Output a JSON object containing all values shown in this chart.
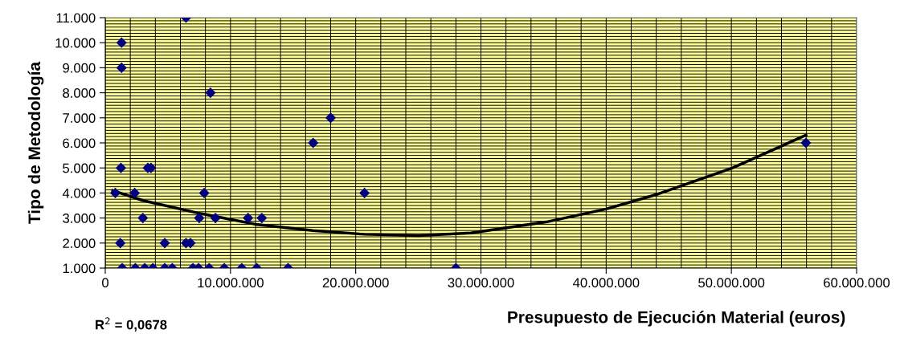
{
  "chart_data": {
    "type": "scatter",
    "xlabel": "Presupuesto de Ejecución Material (euros)",
    "ylabel": "Tipo de Metodología",
    "annotations": [
      "R$^{2}$ = 0,0678"
    ],
    "xlim": [
      0,
      60000000
    ],
    "xticks": [
      0,
      {
        "value": 10000000,
        "label": "10.000.000"
      },
      {
        "value": 20000000,
        "label": "20.000.000"
      },
      {
        "value": 30000000,
        "label": "30.000.000"
      },
      {
        "value": 40000000,
        "label": "40.000.000"
      },
      {
        "value": 50000000,
        "label": "50.000.000"
      },
      {
        "value": 60000000,
        "label": "60.000.000"
      }
    ],
    "ylim": [
      1000,
      11000
    ],
    "yticks": [
      {
        "value": 1000,
        "label": "1.000"
      },
      {
        "value": 2000,
        "label": "2.000"
      },
      {
        "value": 3000,
        "label": "3.000"
      },
      {
        "value": 4000,
        "label": "4.000"
      },
      {
        "value": 5000,
        "label": "5.000"
      },
      {
        "value": 6000,
        "label": "6.000"
      },
      {
        "value": 7000,
        "label": "7.000"
      },
      {
        "value": 8000,
        "label": "8.000"
      },
      {
        "value": 9000,
        "label": "9.000"
      },
      {
        "value": 10000,
        "label": "10.000"
      },
      {
        "value": 11000,
        "label": "11.000"
      }
    ],
    "grid": true,
    "legend": false,
    "series": [
      {
        "color": "#000080",
        "marker": "diamond",
        "x": [
          800000,
          2350000,
          7900000,
          20700000,
          1300000,
          1300000,
          1250000,
          3400000,
          3650000,
          6450000,
          8400000,
          16600000,
          18000000,
          55950000,
          3000000,
          7500000,
          8800000,
          11400000,
          12500000,
          1200000,
          4750000,
          6450000,
          6800000,
          1350000,
          2400000,
          3150000,
          3800000,
          4750000,
          5350000,
          7000000,
          7450000,
          8300000,
          9500000,
          10900000,
          12100000,
          14600000,
          28000000
        ],
        "values": [
          4000,
          4000,
          4000,
          4000,
          10000,
          9000,
          5000,
          5000,
          5000,
          11000,
          8000,
          6000,
          7000,
          6000,
          3000,
          3000,
          3000,
          3000,
          3000,
          2000,
          2000,
          2000,
          2000,
          1000,
          1000,
          1000,
          1000,
          1000,
          1000,
          1000,
          1000,
          1000,
          1000,
          1000,
          1000,
          1000,
          1000
        ]
      },
      {
        "type": "line",
        "color": "#000000",
        "marker": "none",
        "line_style": "solid",
        "x": [
          600000,
          3000000,
          7400000,
          12000000,
          16600000,
          20700000,
          25000000,
          29200000,
          35200000,
          40000000,
          44100000,
          50100000,
          55950000
        ],
        "values": [
          4100,
          3700,
          3200,
          2750,
          2500,
          2350,
          2300,
          2400,
          2840,
          3360,
          3950,
          5000,
          6310
        ]
      }
    ]
  }
}
